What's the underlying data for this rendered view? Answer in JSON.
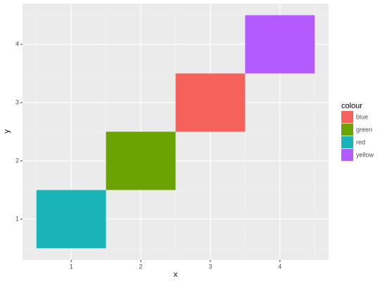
{
  "chart_data": {
    "type": "tile",
    "xlabel": "x",
    "ylabel": "y",
    "legend_title": "colour",
    "legend_position": "right",
    "series": [
      {
        "name": "blue",
        "color": "#F5625B",
        "x": [
          3
        ],
        "values": [
          3
        ]
      },
      {
        "name": "green",
        "color": "#6BA300",
        "x": [
          2
        ],
        "values": [
          2
        ]
      },
      {
        "name": "red",
        "color": "#1AB4B8",
        "x": [
          1
        ],
        "values": [
          1
        ]
      },
      {
        "name": "yellow",
        "color": "#B45BFF",
        "x": [
          4
        ],
        "values": [
          4
        ]
      }
    ],
    "xlim": [
      0.3,
      4.7
    ],
    "ylim": [
      0.3,
      4.7
    ],
    "xticks": [
      1,
      2,
      3,
      4
    ],
    "yticks": [
      1,
      2,
      3,
      4
    ],
    "grid": true
  }
}
